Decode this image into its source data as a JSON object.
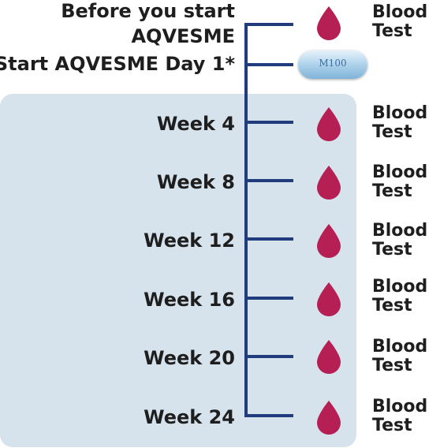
{
  "colors": {
    "timeline": "#203c7c",
    "panel": "#d6e2ec",
    "drop": "#b51f54",
    "pill": "#a9cfe9"
  },
  "pill": {
    "imprint": "M100",
    "icon": "pill-icon"
  },
  "drop_icon": "blood-drop-icon",
  "steps": [
    {
      "label_lines": [
        "Before you start",
        "AQVESME"
      ],
      "event": [
        "Blood",
        "Test"
      ]
    },
    {
      "label_lines": [
        "Start AQVESME Day 1*"
      ],
      "event": []
    },
    {
      "label_lines": [
        "Week 4"
      ],
      "event": [
        "Blood",
        "Test"
      ]
    },
    {
      "label_lines": [
        "Week 8"
      ],
      "event": [
        "Blood",
        "Test"
      ]
    },
    {
      "label_lines": [
        "Week 12"
      ],
      "event": [
        "Blood",
        "Test"
      ]
    },
    {
      "label_lines": [
        "Week 16"
      ],
      "event": [
        "Blood",
        "Test"
      ]
    },
    {
      "label_lines": [
        "Week 20"
      ],
      "event": [
        "Blood",
        "Test"
      ]
    },
    {
      "label_lines": [
        "Week 24"
      ],
      "event": [
        "Blood",
        "Test"
      ]
    }
  ]
}
